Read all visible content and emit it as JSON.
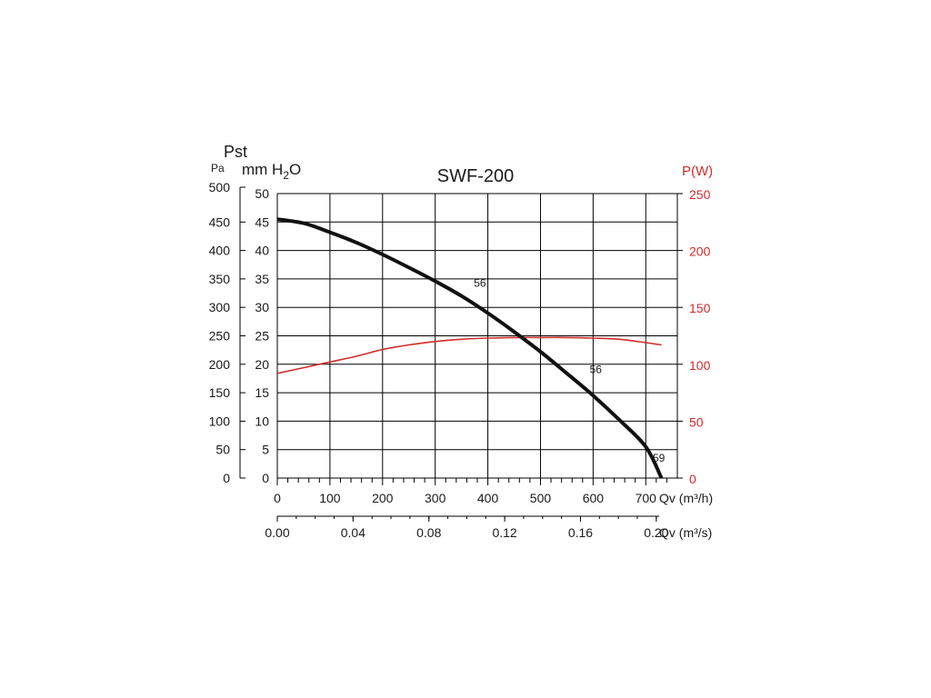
{
  "chart_data": {
    "type": "line",
    "title": "SWF-200",
    "colors": {
      "pressure": "#111111",
      "power": "#d22b2b",
      "grid": "#000000"
    },
    "grid": true,
    "axes": {
      "y_left_pa": {
        "label": "Pa",
        "range": [
          0,
          500
        ],
        "ticks": [
          "0",
          "50",
          "100",
          "150",
          "200",
          "250",
          "300",
          "350",
          "400",
          "450",
          "500"
        ]
      },
      "y_left_mm": {
        "label_top": "Pst",
        "label_pre": "mm H",
        "label_sub": "2",
        "label_post": "O",
        "range": [
          0,
          50
        ],
        "ticks": [
          "0",
          "5",
          "10",
          "15",
          "20",
          "25",
          "30",
          "35",
          "40",
          "45",
          "50"
        ]
      },
      "y_right": {
        "label": "P(W)",
        "range": [
          0,
          250
        ],
        "ticks": [
          "0",
          "50",
          "100",
          "150",
          "200",
          "250"
        ]
      },
      "x_m3h": {
        "label": "Qv (m³/h)",
        "range": [
          0,
          750
        ],
        "ticks": [
          "0",
          "100",
          "200",
          "300",
          "400",
          "500",
          "600",
          "700"
        ]
      },
      "x_m3s": {
        "label": "Qv (m³/s)",
        "ticks": [
          "0.00",
          "0.04",
          "0.08",
          "0.12",
          "0.16",
          "0.20"
        ]
      }
    },
    "series": [
      {
        "axis": "y_left_pa",
        "x": [
          0,
          50,
          100,
          150,
          200,
          250,
          300,
          350,
          400,
          450,
          500,
          550,
          600,
          650,
          700,
          730
        ],
        "y": [
          455,
          448,
          432,
          414,
          393,
          370,
          346,
          320,
          290,
          257,
          222,
          184,
          145,
          102,
          55,
          0
        ]
      },
      {
        "axis": "y_right",
        "x": [
          0,
          50,
          100,
          150,
          200,
          250,
          300,
          350,
          400,
          450,
          500,
          550,
          600,
          650,
          700,
          730
        ],
        "y": [
          92,
          97,
          102,
          107,
          113,
          117,
          120,
          122,
          123,
          123.5,
          123.5,
          123.5,
          123,
          122,
          119,
          117
        ]
      }
    ],
    "annotations": [
      {
        "text": "56",
        "x": 385,
        "y": 330
      },
      {
        "text": "56",
        "x": 605,
        "y": 178
      },
      {
        "text": "59",
        "x": 730,
        "y": 22
      }
    ]
  }
}
